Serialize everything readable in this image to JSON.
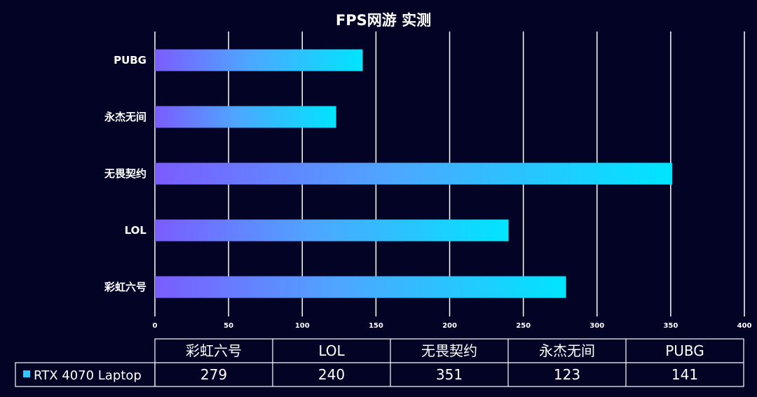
{
  "colors": {
    "background": "#030326",
    "grid": "#ffffff",
    "gradient_start": "#7b5cff",
    "gradient_mid": "#4ea6ff",
    "gradient_end": "#00e5ff",
    "legend_swatch": "#34c6ff"
  },
  "chart_data": {
    "type": "bar",
    "orientation": "horizontal",
    "title": "FPS网游 实测",
    "categories_top_to_bottom": [
      "PUBG",
      "永杰无间",
      "无畏契约",
      "LOL",
      "彩虹六号"
    ],
    "categories_table_order": [
      "彩虹六号",
      "LOL",
      "无畏契约",
      "永杰无间",
      "PUBG"
    ],
    "series": [
      {
        "name": "RTX 4070 Laptop",
        "values_top_to_bottom": [
          141,
          123,
          351,
          240,
          279
        ],
        "values_table_order": [
          279,
          240,
          351,
          123,
          141
        ]
      }
    ],
    "xlim": [
      0,
      400
    ],
    "x_ticks": [
      "0",
      "50",
      "100",
      "150",
      "200",
      "250",
      "300",
      "350",
      "400"
    ],
    "grid": true,
    "legend": "bottom-left in table"
  }
}
